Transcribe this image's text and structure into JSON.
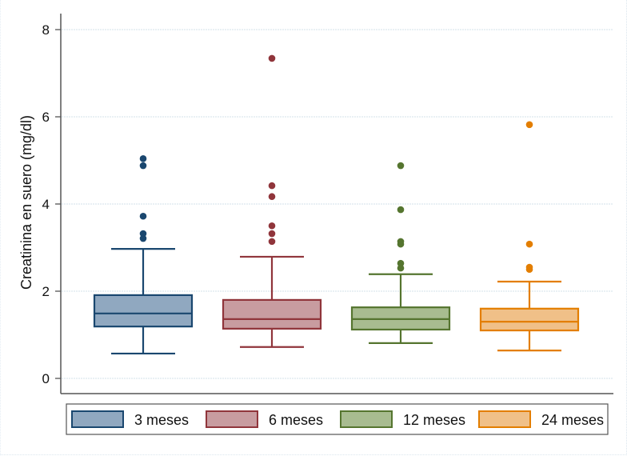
{
  "chart_data": {
    "type": "box",
    "title": "",
    "xlabel": "",
    "ylabel": "Creatinina en suero (mg/dl)",
    "ylim": [
      0,
      8
    ],
    "yticks": [
      0,
      2,
      4,
      6,
      8
    ],
    "ytick_labels": [
      "0",
      "2",
      "4",
      "6",
      "8"
    ],
    "grid": true,
    "legend_position": "bottom",
    "series": [
      {
        "name": "3 meses",
        "stroke": "#1a476f",
        "fill": "#90a8c0",
        "whisker_low": 0.57,
        "q1": 1.19,
        "median": 1.49,
        "q3": 1.91,
        "whisker_high": 2.97,
        "outliers": [
          5.04,
          4.88,
          3.72,
          3.32,
          3.21
        ]
      },
      {
        "name": "6 meses",
        "stroke": "#90353b",
        "fill": "#c89ca0",
        "whisker_low": 0.72,
        "q1": 1.14,
        "median": 1.36,
        "q3": 1.8,
        "whisker_high": 2.79,
        "outliers": [
          7.34,
          4.42,
          4.17,
          3.5,
          3.32,
          3.14
        ]
      },
      {
        "name": "12 meses",
        "stroke": "#55752f",
        "fill": "#a8bc90",
        "whisker_low": 0.81,
        "q1": 1.12,
        "median": 1.36,
        "q3": 1.63,
        "whisker_high": 2.39,
        "outliers": [
          4.88,
          3.87,
          3.14,
          3.08,
          2.64,
          2.53
        ]
      },
      {
        "name": "24 meses",
        "stroke": "#e37e00",
        "fill": "#f0c088",
        "whisker_low": 0.64,
        "q1": 1.1,
        "median": 1.3,
        "q3": 1.6,
        "whisker_high": 2.22,
        "outliers": [
          5.82,
          3.08,
          2.55,
          2.5
        ]
      }
    ]
  }
}
